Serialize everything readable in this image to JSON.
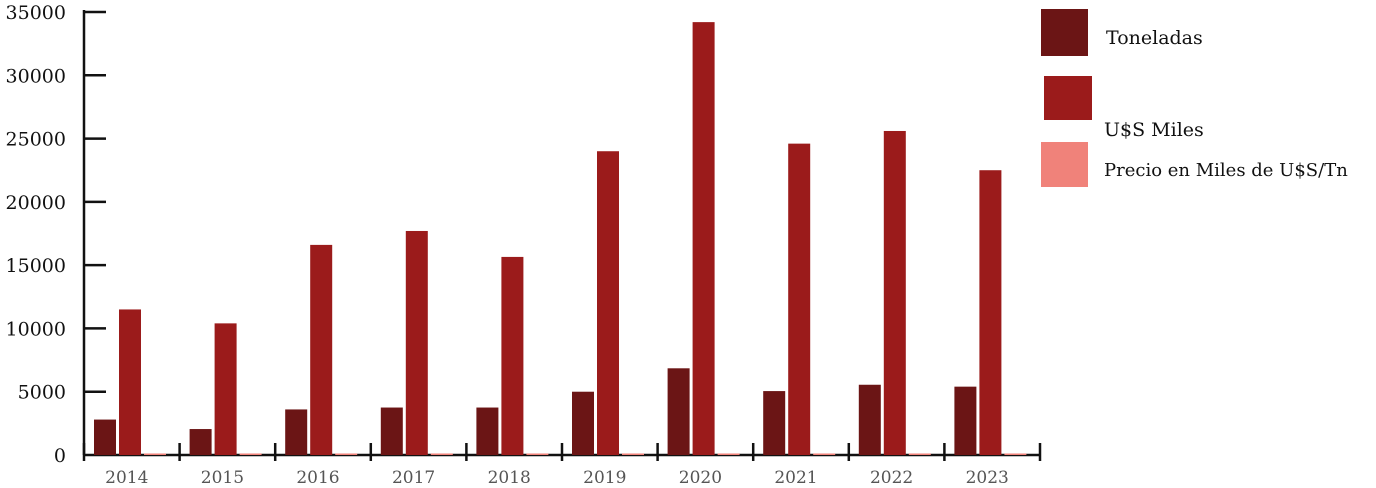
{
  "chart_data": {
    "type": "bar",
    "categories": [
      "2014",
      "2015",
      "2016",
      "2017",
      "2018",
      "2019",
      "2020",
      "2021",
      "2022",
      "2023"
    ],
    "series": [
      {
        "name": "Toneladas",
        "color": "#6b1515",
        "values": [
          2800,
          2050,
          3600,
          3750,
          3750,
          5000,
          6850,
          5050,
          5550,
          5400
        ]
      },
      {
        "name": "U$S Miles",
        "color": "#9b1b1b",
        "values": [
          11500,
          10400,
          16600,
          17700,
          15650,
          24000,
          34200,
          24600,
          25600,
          22500
        ]
      },
      {
        "name": "Precio en Miles de U$S/Tn",
        "color": "#f0827a",
        "values": [
          4.1,
          5.1,
          4.6,
          4.7,
          4.2,
          4.8,
          5.0,
          4.9,
          4.6,
          4.2
        ]
      }
    ],
    "yticks": [
      "0",
      "5000",
      "10000",
      "15000",
      "20000",
      "25000",
      "30000",
      "35000"
    ],
    "ylim": [
      0,
      35000
    ],
    "grid": false,
    "legend_position": "right"
  }
}
